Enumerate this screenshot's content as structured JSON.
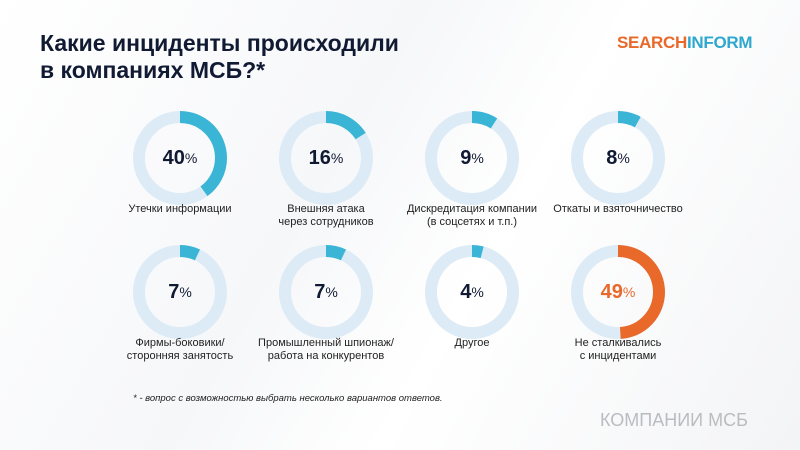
{
  "title_line1": "Какие инциденты происходили",
  "title_line2": "в компаниях МСБ?*",
  "logo": {
    "part1": "SEARCH",
    "part2": "INFORM"
  },
  "colors": {
    "track": "#dcebf6",
    "accent": "#3bb5d6",
    "highlight": "#e8692a",
    "text": "#111a33"
  },
  "chart_data": {
    "type": "pie",
    "items": [
      {
        "label": "Утечки информации",
        "label2": "",
        "value": 40,
        "display": "40"
      },
      {
        "label": "Внешняя атака",
        "label2": "через сотрудников",
        "value": 16,
        "display": "16"
      },
      {
        "label": "Дискредитация компании",
        "label2": "(в соцсетях и т.п.)",
        "value": 9,
        "display": "9"
      },
      {
        "label": "Откаты и взяточничество",
        "label2": "",
        "value": 8,
        "display": "8"
      },
      {
        "label": "Фирмы-боковики/",
        "label2": "сторонняя занятость",
        "value": 7,
        "display": "7"
      },
      {
        "label": "Промышленный шпионаж/",
        "label2": "работа на конкурентов",
        "value": 7,
        "display": "7"
      },
      {
        "label": "Другое",
        "label2": "",
        "value": 4,
        "display": "4"
      },
      {
        "label": "Не сталкивались",
        "label2": "с инцидентами",
        "value": 49,
        "display": "49",
        "highlight": true
      }
    ],
    "unit": "%"
  },
  "footnote": "* - вопрос с возможностью выбрать несколько вариантов ответов.",
  "brand_text": "КОМПАНИИ МСБ"
}
